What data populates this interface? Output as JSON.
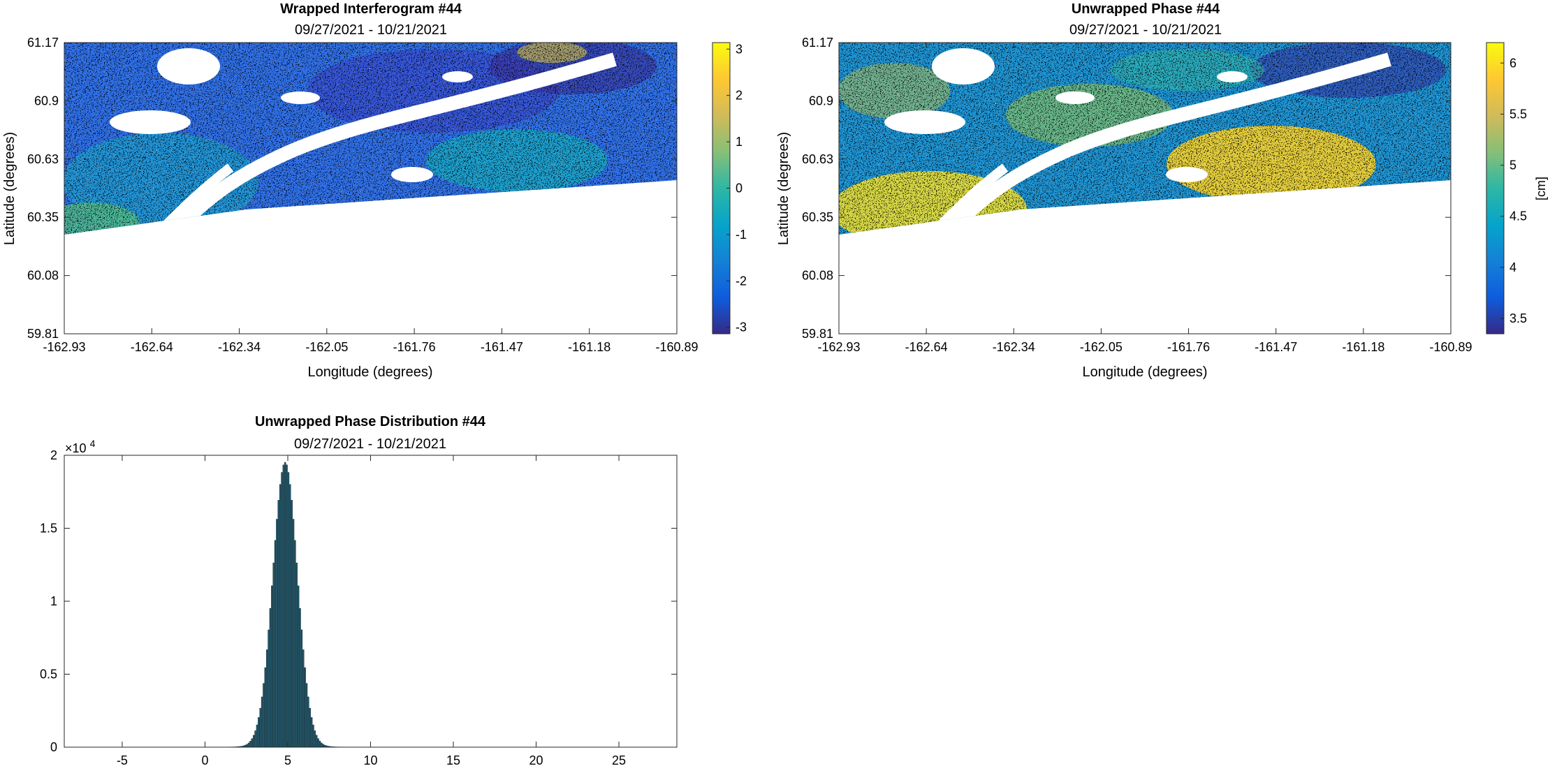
{
  "chart_data": [
    {
      "type": "heatmap",
      "title": "Wrapped Interferogram #44",
      "subtitle": "09/27/2021 - 10/21/2021",
      "xlabel": "Longitude (degrees)",
      "ylabel": "Latitude (degrees)",
      "xlim": [
        -162.93,
        -160.89
      ],
      "ylim": [
        59.81,
        61.17
      ],
      "xticks": [
        "-162.93",
        "-162.64",
        "-162.34",
        "-162.05",
        "-161.76",
        "-161.47",
        "-161.18",
        "-160.89"
      ],
      "yticks": [
        "61.17",
        "60.9",
        "60.63",
        "60.35",
        "60.08",
        "59.81"
      ],
      "colorbar": {
        "range": [
          -3.14,
          3.14
        ],
        "ticks": [
          "3",
          "2",
          "1",
          "0",
          "-1",
          "-2",
          "-3"
        ],
        "label": "",
        "colormap": "parula"
      }
    },
    {
      "type": "heatmap",
      "title": "Unwrapped Phase #44",
      "subtitle": "09/27/2021 - 10/21/2021",
      "xlabel": "Longitude (degrees)",
      "ylabel": "Latitude (degrees)",
      "xlim": [
        -162.93,
        -160.89
      ],
      "ylim": [
        59.81,
        61.17
      ],
      "xticks": [
        "-162.93",
        "-162.64",
        "-162.34",
        "-162.05",
        "-161.76",
        "-161.47",
        "-161.18",
        "-160.89"
      ],
      "yticks": [
        "61.17",
        "60.9",
        "60.63",
        "60.35",
        "60.08",
        "59.81"
      ],
      "colorbar": {
        "range": [
          3.35,
          6.2
        ],
        "ticks": [
          "6",
          "5.5",
          "5",
          "4.5",
          "4",
          "3.5"
        ],
        "label": "[cm]",
        "colormap": "parula"
      }
    },
    {
      "type": "bar",
      "title": "Unwrapped Phase Distribution #44",
      "subtitle": "09/27/2021 - 10/21/2021",
      "xlabel": "",
      "ylabel": "",
      "xlim": [
        -8.5,
        28.5
      ],
      "ylim": [
        0,
        20000
      ],
      "xticks": [
        "-5",
        "0",
        "5",
        "10",
        "15",
        "20",
        "25"
      ],
      "yticks": [
        "2",
        "1.5",
        "1",
        "0.5",
        "0"
      ],
      "y_exponent": "×10",
      "y_exponent_power": "4",
      "distribution": {
        "peak_x": 4.8,
        "peak_count": 19400,
        "spread": 0.75
      }
    }
  ]
}
